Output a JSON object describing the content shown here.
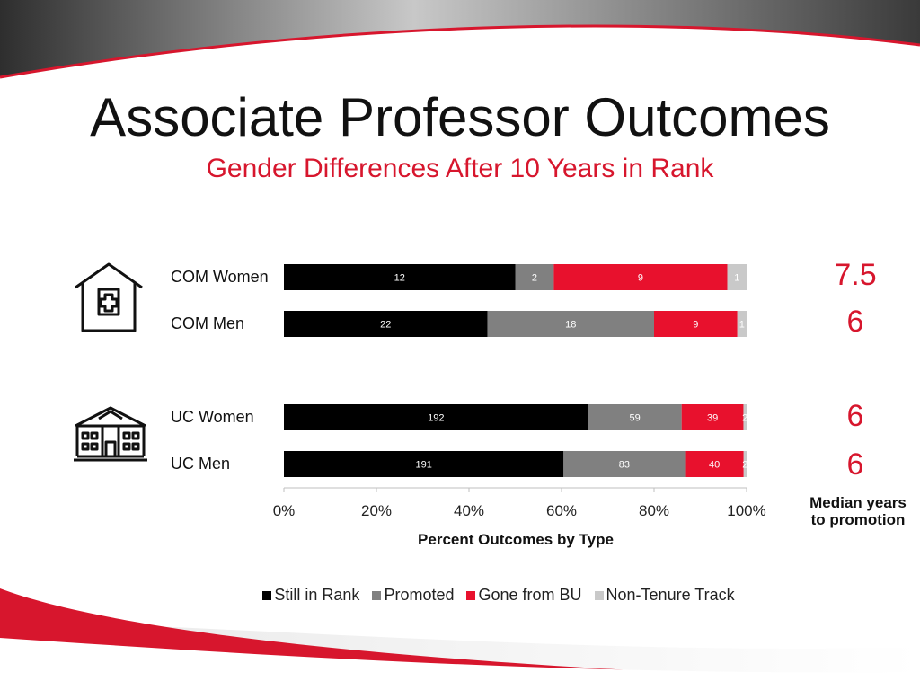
{
  "slide": {
    "title": "Associate Professor Outcomes",
    "subtitle": "Gender Differences After 10 Years in Rank"
  },
  "colors": {
    "still_in_rank": "#000000",
    "promoted": "#808080",
    "gone_from_bu": "#e8112d",
    "non_tenure_track": "#c9c9c9",
    "accent": "#d7162d"
  },
  "icons": {
    "com": "hospital-icon",
    "uc": "university-building-icon"
  },
  "median": {
    "caption": "Median years to promotion",
    "values": [
      "7.5",
      "6",
      "6",
      "6"
    ]
  },
  "chart_data": {
    "type": "bar",
    "orientation": "horizontal",
    "stacked": "percent",
    "categories": [
      "COM Women",
      "COM Men",
      "UC Women",
      "UC Men"
    ],
    "series": [
      {
        "name": "Still in Rank",
        "values": [
          12,
          22,
          192,
          191
        ]
      },
      {
        "name": "Promoted",
        "values": [
          2,
          18,
          59,
          83
        ]
      },
      {
        "name": "Gone from BU",
        "values": [
          9,
          9,
          39,
          40
        ]
      },
      {
        "name": "Non-Tenure Track",
        "values": [
          1,
          1,
          2,
          2
        ]
      }
    ],
    "xlabel": "Percent Outcomes by Type",
    "ylabel": "",
    "xlim": [
      0,
      100
    ],
    "xticks": [
      "0%",
      "20%",
      "40%",
      "60%",
      "80%",
      "100%"
    ],
    "legend": "bottom",
    "grid": false
  }
}
